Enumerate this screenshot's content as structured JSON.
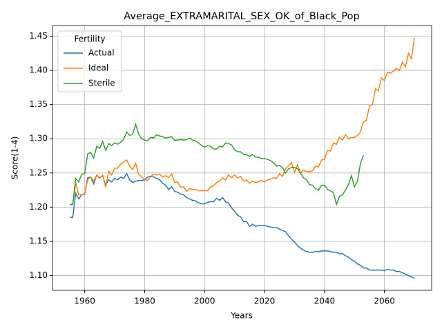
{
  "chart_data": {
    "type": "line",
    "title": "Average_EXTRAMARITAL_SEX_OK_of_Black_Pop",
    "xlabel": "Years",
    "ylabel": "Score(1-4)",
    "legend_title": "Fertility",
    "legend": "upper left",
    "grid": true,
    "x": [
      1955,
      1956,
      1957,
      1958,
      1959,
      1960,
      1961,
      1962,
      1963,
      1964,
      1965,
      1966,
      1967,
      1968,
      1969,
      1970,
      1971,
      1972,
      1973,
      1974,
      1975,
      1976,
      1977,
      1978,
      1979,
      1980,
      1981,
      1982,
      1983,
      1984,
      1985,
      1986,
      1987,
      1988,
      1989,
      1990,
      1991,
      1992,
      1993,
      1994,
      1995,
      1996,
      1997,
      1998,
      1999,
      2000,
      2001,
      2002,
      2003,
      2004,
      2005,
      2006,
      2007,
      2008,
      2009,
      2010,
      2011,
      2012,
      2013,
      2014,
      2015,
      2016,
      2017,
      2018,
      2019,
      2020,
      2021,
      2022,
      2023,
      2024,
      2025,
      2026,
      2027,
      2028,
      2029,
      2030,
      2031,
      2032,
      2033,
      2034,
      2035,
      2036,
      2037,
      2038,
      2039,
      2040,
      2041,
      2042,
      2043,
      2044,
      2045,
      2046,
      2047,
      2048,
      2049,
      2050,
      2051,
      2052,
      2053,
      2054,
      2055,
      2056,
      2057,
      2058,
      2059,
      2060,
      2061,
      2062,
      2063,
      2064,
      2065,
      2066,
      2067,
      2068,
      2069,
      2070
    ],
    "series": [
      {
        "name": "Actual",
        "color": "#1f77b4",
        "values": [
          1.185,
          1.185,
          1.22,
          1.212,
          1.218,
          1.219,
          1.243,
          1.244,
          1.234,
          1.247,
          1.243,
          1.246,
          1.232,
          1.24,
          1.237,
          1.242,
          1.24,
          1.244,
          1.242,
          1.249,
          1.24,
          1.236,
          1.238,
          1.239,
          1.239,
          1.24,
          1.244,
          1.245,
          1.244,
          1.242,
          1.24,
          1.235,
          1.232,
          1.226,
          1.23,
          1.223,
          1.222,
          1.219,
          1.218,
          1.214,
          1.212,
          1.21,
          1.209,
          1.206,
          1.205,
          1.205,
          1.207,
          1.208,
          1.208,
          1.213,
          1.21,
          1.214,
          1.208,
          1.206,
          1.199,
          1.194,
          1.188,
          1.186,
          1.179,
          1.179,
          1.172,
          1.175,
          1.172,
          1.173,
          1.173,
          1.173,
          1.172,
          1.171,
          1.17,
          1.17,
          1.168,
          1.166,
          1.164,
          1.158,
          1.153,
          1.149,
          1.144,
          1.14,
          1.137,
          1.135,
          1.134,
          1.134,
          1.135,
          1.135,
          1.136,
          1.136,
          1.136,
          1.135,
          1.134,
          1.134,
          1.132,
          1.132,
          1.129,
          1.127,
          1.123,
          1.121,
          1.117,
          1.115,
          1.111,
          1.111,
          1.108,
          1.108,
          1.108,
          1.108,
          1.108,
          1.107,
          1.109,
          1.108,
          1.108,
          1.106,
          1.106,
          1.104,
          1.102,
          1.1,
          1.098,
          1.096
        ]
      },
      {
        "name": "Ideal",
        "color": "#ff7f0e",
        "values": [
          1.204,
          1.204,
          1.235,
          1.218,
          1.218,
          1.22,
          1.24,
          1.244,
          1.238,
          1.247,
          1.242,
          1.247,
          1.229,
          1.253,
          1.247,
          1.257,
          1.257,
          1.263,
          1.266,
          1.269,
          1.26,
          1.255,
          1.264,
          1.248,
          1.244,
          1.24,
          1.239,
          1.245,
          1.248,
          1.247,
          1.248,
          1.244,
          1.246,
          1.243,
          1.249,
          1.236,
          1.237,
          1.229,
          1.23,
          1.223,
          1.227,
          1.226,
          1.226,
          1.224,
          1.224,
          1.224,
          1.224,
          1.23,
          1.231,
          1.236,
          1.238,
          1.243,
          1.24,
          1.247,
          1.243,
          1.247,
          1.243,
          1.245,
          1.238,
          1.24,
          1.235,
          1.238,
          1.236,
          1.237,
          1.239,
          1.237,
          1.24,
          1.241,
          1.243,
          1.242,
          1.249,
          1.245,
          1.256,
          1.26,
          1.265,
          1.251,
          1.262,
          1.25,
          1.254,
          1.252,
          1.252,
          1.253,
          1.26,
          1.259,
          1.269,
          1.27,
          1.283,
          1.282,
          1.294,
          1.292,
          1.302,
          1.298,
          1.306,
          1.3,
          1.302,
          1.302,
          1.305,
          1.31,
          1.325,
          1.327,
          1.348,
          1.35,
          1.373,
          1.37,
          1.389,
          1.385,
          1.397,
          1.396,
          1.399,
          1.403,
          1.4,
          1.412,
          1.405,
          1.425,
          1.417,
          1.448
        ]
      },
      {
        "name": "Sterile",
        "color": "#2ca02c",
        "values": [
          1.204,
          1.204,
          1.242,
          1.237,
          1.248,
          1.249,
          1.278,
          1.28,
          1.272,
          1.289,
          1.286,
          1.296,
          1.283,
          1.293,
          1.29,
          1.294,
          1.292,
          1.295,
          1.299,
          1.31,
          1.305,
          1.307,
          1.321,
          1.307,
          1.3,
          1.298,
          1.297,
          1.302,
          1.301,
          1.306,
          1.304,
          1.303,
          1.301,
          1.302,
          1.303,
          1.298,
          1.298,
          1.299,
          1.298,
          1.299,
          1.301,
          1.298,
          1.297,
          1.294,
          1.29,
          1.288,
          1.29,
          1.289,
          1.285,
          1.285,
          1.289,
          1.288,
          1.294,
          1.293,
          1.291,
          1.284,
          1.281,
          1.281,
          1.277,
          1.277,
          1.274,
          1.277,
          1.273,
          1.273,
          1.271,
          1.271,
          1.27,
          1.268,
          1.265,
          1.26,
          1.261,
          1.258,
          1.25,
          1.256,
          1.258,
          1.258,
          1.256,
          1.25,
          1.243,
          1.24,
          1.233,
          1.232,
          1.227,
          1.225,
          1.232,
          1.232,
          1.226,
          1.224,
          1.221,
          1.204,
          1.216,
          1.218,
          1.225,
          1.233,
          1.246,
          1.23,
          1.238,
          1.264,
          1.276,
          null,
          null,
          null,
          null,
          null,
          null,
          null,
          null,
          null,
          null,
          null,
          null,
          null,
          null,
          null,
          null,
          null
        ]
      }
    ],
    "xlim": [
      1949.25,
      2075.75
    ],
    "xticks": [
      1960,
      1980,
      2000,
      2020,
      2040,
      2060
    ],
    "ylim": [
      1.0784,
      1.4656
    ],
    "yticks": [
      {
        "value": 1.1,
        "label": "1.10"
      },
      1.15,
      {
        "value": 1.2,
        "label": "1.20"
      },
      1.25,
      {
        "value": 1.3,
        "label": "1.30"
      },
      1.35,
      {
        "value": 1.4,
        "label": "1.40"
      },
      1.45
    ]
  }
}
